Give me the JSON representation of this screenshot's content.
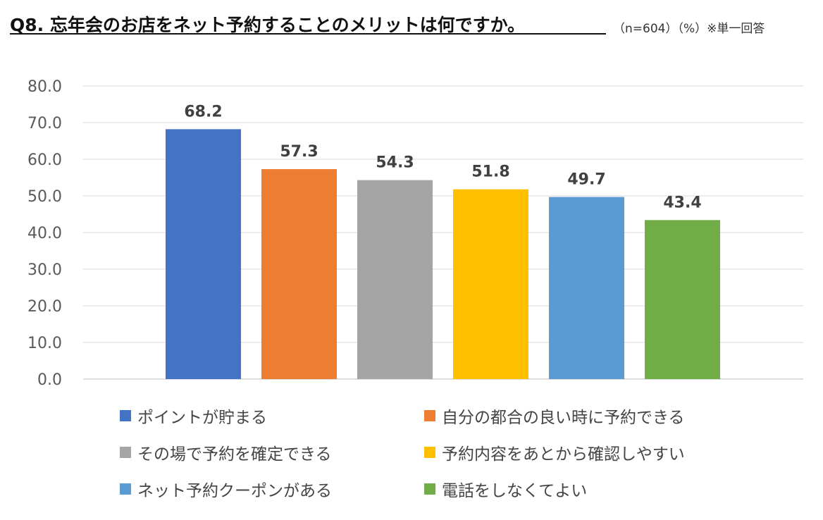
{
  "header": {
    "title": "Q8. 忘年会のお店をネット予約することのメリットは何ですか。",
    "note": "（n=604）（%）※単一回答"
  },
  "colors": {
    "gridline": "#d9d9d9",
    "axis_text": "#595959",
    "data_label": "#404040"
  },
  "chart_data": {
    "type": "bar",
    "categories": [
      "ポイントが貯まる",
      "自分の都合の良い時に予約できる",
      "その場で予約を確定できる",
      "予約内容をあとから確認しやすい",
      "ネット予約クーポンがある",
      "電話をしなくてよい"
    ],
    "values": [
      68.2,
      57.3,
      54.3,
      51.8,
      49.7,
      43.4
    ],
    "value_labels": [
      "68.2",
      "57.3",
      "54.3",
      "51.8",
      "49.7",
      "43.4"
    ],
    "colors": [
      "#4472c4",
      "#ed7d31",
      "#a5a5a5",
      "#ffc000",
      "#5b9bd5",
      "#70ad47"
    ],
    "ylim": [
      0,
      80
    ],
    "yticks": [
      "0.0",
      "10.0",
      "20.0",
      "30.0",
      "40.0",
      "50.0",
      "60.0",
      "70.0",
      "80.0"
    ],
    "grid": true,
    "legend_position": "bottom",
    "xlabel": "",
    "ylabel": ""
  }
}
